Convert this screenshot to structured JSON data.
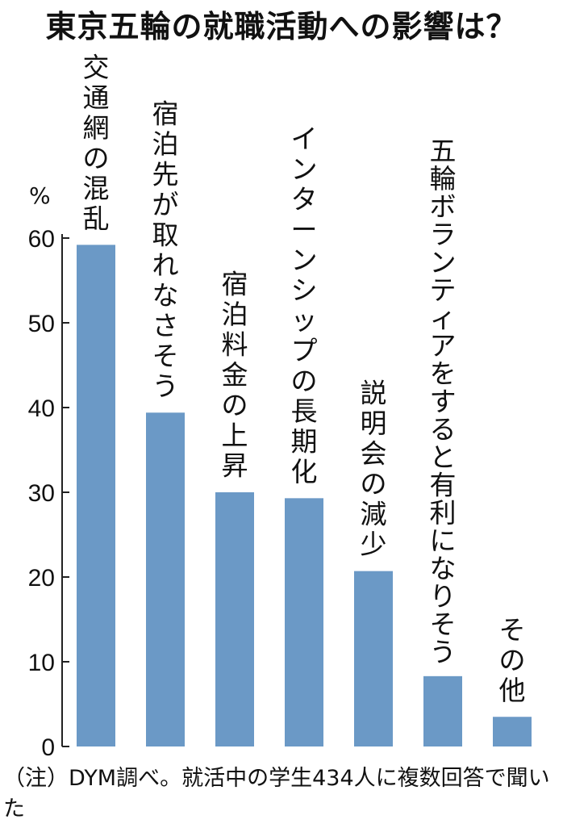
{
  "chart_data": {
    "type": "bar",
    "title": "東京五輪の就職活動への影響は？",
    "unit": "%",
    "categories": [
      "交通網の混乱",
      "宿泊先が取れなさそう",
      "宿泊料金の上昇",
      "インターンシップの長期化",
      "説明会の減少",
      "五輪ボランティアをすると有利になりそう",
      "その他"
    ],
    "values": [
      59.2,
      39.4,
      30.0,
      29.3,
      20.7,
      8.3,
      3.5
    ],
    "yticks": [
      "0",
      "10",
      "20",
      "30",
      "40",
      "50",
      "60"
    ],
    "ylim": [
      0,
      60
    ],
    "grid": false,
    "bar_color": "#6b99c6"
  },
  "footnote": "（注）DYM調べ。就活中の学生434人に複数回答で聞いた"
}
